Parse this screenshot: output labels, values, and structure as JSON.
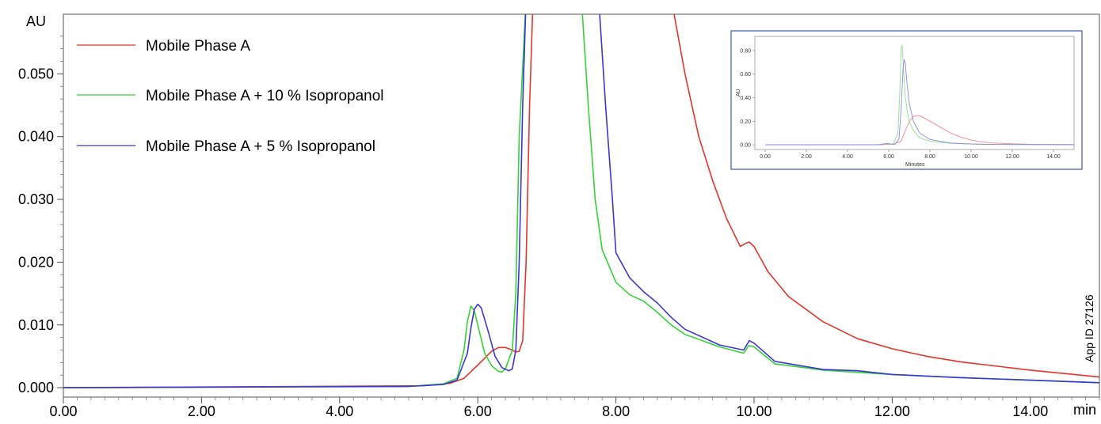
{
  "chart_data": [
    {
      "type": "line",
      "title": "",
      "xlabel": "min",
      "ylabel": "AU",
      "xlim": [
        0,
        15
      ],
      "ylim": [
        -0.0015,
        0.0595
      ],
      "grid": false,
      "legend_position": "top-left",
      "x_ticks": [
        "0.00",
        "2.00",
        "4.00",
        "6.00",
        "8.00",
        "10.00",
        "12.00",
        "14.00"
      ],
      "x_tick_values": [
        0,
        2,
        4,
        6,
        8,
        10,
        12,
        14
      ],
      "y_ticks": [
        "0.000",
        "0.010",
        "0.020",
        "0.030",
        "0.040",
        "0.050"
      ],
      "y_tick_values": [
        0,
        0.01,
        0.02,
        0.03,
        0.04,
        0.05
      ],
      "annotation": "App ID 27126",
      "series": [
        {
          "name": "Mobile Phase A",
          "color": "#e8332a",
          "x": [
            0.0,
            5.2,
            5.6,
            5.8,
            6.0,
            6.2,
            6.3,
            6.4,
            6.5,
            6.55,
            6.6,
            6.65,
            6.7,
            6.75,
            6.8,
            8.8,
            9.0,
            9.2,
            9.4,
            9.6,
            9.8,
            9.88,
            9.93,
            10.0,
            10.2,
            10.5,
            11.0,
            11.5,
            12.0,
            12.5,
            13.0,
            14.0,
            15.0
          ],
          "y": [
            0.0,
            0.0003,
            0.0007,
            0.0015,
            0.0036,
            0.0058,
            0.0064,
            0.0064,
            0.006,
            0.0057,
            0.0058,
            0.0075,
            0.02,
            0.045,
            0.062,
            0.062,
            0.05,
            0.04,
            0.033,
            0.027,
            0.0225,
            0.023,
            0.0232,
            0.0225,
            0.0185,
            0.0145,
            0.0105,
            0.0078,
            0.0062,
            0.005,
            0.0041,
            0.0028,
            0.0017
          ]
        },
        {
          "name": "Mobile Phase A + 10 % Isopropanol",
          "color": "#35d335",
          "x": [
            0.0,
            5.0,
            5.5,
            5.7,
            5.8,
            5.85,
            5.9,
            5.95,
            6.0,
            6.1,
            6.2,
            6.3,
            6.35,
            6.4,
            6.5,
            6.55,
            6.6,
            6.7,
            7.5,
            7.6,
            7.7,
            7.8,
            8.0,
            8.2,
            8.4,
            8.6,
            8.8,
            9.0,
            9.5,
            9.85,
            9.92,
            10.0,
            10.3,
            11.0,
            12.0,
            13.0,
            14.0,
            15.0
          ],
          "y": [
            0.0,
            0.0002,
            0.0006,
            0.0015,
            0.006,
            0.0105,
            0.013,
            0.0123,
            0.01,
            0.0055,
            0.0035,
            0.0026,
            0.0025,
            0.003,
            0.006,
            0.015,
            0.04,
            0.062,
            0.062,
            0.045,
            0.03,
            0.022,
            0.0168,
            0.0148,
            0.0138,
            0.012,
            0.01,
            0.0085,
            0.0065,
            0.0055,
            0.0067,
            0.0065,
            0.0038,
            0.0028,
            0.0021,
            0.0016,
            0.0012,
            0.0008
          ]
        },
        {
          "name": "Mobile Phase A + 5 % Isopropanol",
          "color": "#3a35d8",
          "x": [
            0.0,
            5.0,
            5.5,
            5.7,
            5.85,
            5.9,
            5.95,
            6.0,
            6.05,
            6.15,
            6.25,
            6.35,
            6.45,
            6.5,
            6.55,
            6.6,
            6.65,
            6.7,
            7.75,
            7.85,
            7.95,
            8.0,
            8.2,
            8.4,
            8.6,
            8.8,
            9.0,
            9.5,
            9.85,
            9.93,
            10.0,
            10.3,
            11.0,
            11.5,
            12.0,
            13.0,
            14.0,
            15.0
          ],
          "y": [
            0.0,
            0.0002,
            0.0005,
            0.0012,
            0.0055,
            0.0095,
            0.0125,
            0.0133,
            0.0127,
            0.009,
            0.005,
            0.0032,
            0.0027,
            0.003,
            0.006,
            0.02,
            0.045,
            0.062,
            0.062,
            0.045,
            0.03,
            0.0215,
            0.0175,
            0.0153,
            0.0135,
            0.0112,
            0.0093,
            0.0068,
            0.006,
            0.0075,
            0.0071,
            0.0042,
            0.0029,
            0.0027,
            0.0021,
            0.0016,
            0.0012,
            0.0008
          ]
        }
      ]
    },
    {
      "type": "line",
      "title": "",
      "xlabel": "Minutes",
      "ylabel": "AU",
      "xlim": [
        -0.5,
        15
      ],
      "ylim": [
        -0.04,
        0.92
      ],
      "grid": false,
      "x_ticks": [
        "0.00",
        "2.00",
        "4.00",
        "6.00",
        "8.00",
        "10.00",
        "12.00",
        "14.00"
      ],
      "x_tick_values": [
        0,
        2,
        4,
        6,
        8,
        10,
        12,
        14
      ],
      "y_ticks": [
        "0.00",
        "0.20",
        "0.40",
        "0.60",
        "0.80"
      ],
      "y_tick_values": [
        0,
        0.2,
        0.4,
        0.6,
        0.8
      ],
      "series": [
        {
          "color": "#f08a86",
          "x": [
            0,
            5.5,
            6.2,
            6.6,
            6.8,
            7.0,
            7.2,
            7.4,
            7.6,
            8.0,
            8.5,
            9.0,
            9.5,
            10.0,
            10.5,
            11.0,
            12.0,
            13.0,
            15.0
          ],
          "y": [
            0,
            0.0,
            0.005,
            0.03,
            0.12,
            0.2,
            0.24,
            0.25,
            0.24,
            0.2,
            0.15,
            0.1,
            0.065,
            0.04,
            0.025,
            0.016,
            0.008,
            0.004,
            0.002
          ]
        },
        {
          "color": "#8fe08f",
          "x": [
            0,
            5.5,
            5.9,
            6.0,
            6.2,
            6.45,
            6.55,
            6.6,
            6.65,
            6.7,
            6.8,
            6.9,
            7.0,
            7.2,
            7.5,
            8.0,
            9.0,
            10.0,
            11.0,
            15.0
          ],
          "y": [
            0,
            0.0,
            0.012,
            0.006,
            0.004,
            0.1,
            0.5,
            0.8,
            0.85,
            0.7,
            0.42,
            0.28,
            0.2,
            0.12,
            0.06,
            0.03,
            0.012,
            0.006,
            0.003,
            0.001
          ]
        },
        {
          "color": "#8a8ae6",
          "x": [
            0,
            5.5,
            5.95,
            6.1,
            6.3,
            6.5,
            6.6,
            6.7,
            6.75,
            6.8,
            6.9,
            7.0,
            7.2,
            7.5,
            8.0,
            9.0,
            10.0,
            11.0,
            15.0
          ],
          "y": [
            0,
            0.0,
            0.013,
            0.006,
            0.004,
            0.05,
            0.3,
            0.65,
            0.72,
            0.7,
            0.5,
            0.35,
            0.2,
            0.1,
            0.045,
            0.015,
            0.007,
            0.003,
            0.001
          ]
        }
      ]
    }
  ]
}
